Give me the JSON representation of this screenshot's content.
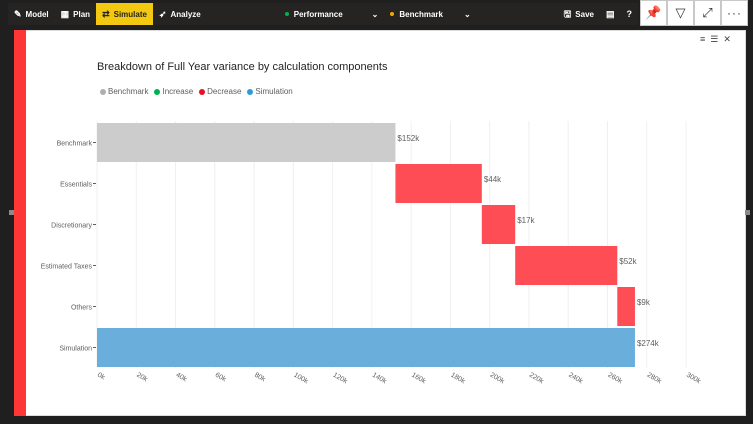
{
  "toolbar": {
    "items": [
      {
        "label": "Model",
        "icon": "✎",
        "active": false
      },
      {
        "label": "Plan",
        "icon": "▦",
        "active": false
      },
      {
        "label": "Simulate",
        "icon": "⇄",
        "active": true
      },
      {
        "label": "Analyze",
        "icon": "➶",
        "active": false
      }
    ],
    "selectors": [
      {
        "label": "Performance",
        "dot_color": "#00b050"
      },
      {
        "label": "Benchmark",
        "dot_color": "#f2a900"
      }
    ],
    "save_label": "Save"
  },
  "visual_header": {
    "icons": [
      "pin-icon",
      "filter-icon",
      "focus-mode-icon",
      "more-options-icon"
    ]
  },
  "colors": {
    "benchmark": "#cccccc",
    "increase": "#00b050",
    "decrease": "#ff4d55",
    "simulation": "#6aafdb",
    "accent_strip": "#ff3636",
    "toolbar_active": "#f2c811"
  },
  "chart_data": {
    "type": "bar",
    "subtype": "horizontal-waterfall",
    "title": "Breakdown of Full Year variance by calculation components",
    "legend": [
      {
        "name": "Benchmark",
        "color": "#b0b0b0"
      },
      {
        "name": "Increase",
        "color": "#00b050"
      },
      {
        "name": "Decrease",
        "color": "#e81123"
      },
      {
        "name": "Simulation",
        "color": "#2e9bd6"
      }
    ],
    "legend_position": "top-left",
    "xlim": [
      0,
      300
    ],
    "xticks": [
      0,
      20,
      40,
      60,
      80,
      100,
      120,
      140,
      160,
      180,
      200,
      220,
      240,
      260,
      280,
      300
    ],
    "xtick_labels": [
      "0k",
      "20k",
      "40k",
      "60k",
      "80k",
      "100k",
      "120k",
      "140k",
      "160k",
      "180k",
      "200k",
      "220k",
      "240k",
      "260k",
      "280k",
      "300k"
    ],
    "grid": true,
    "bars": [
      {
        "category": "Benchmark",
        "start": 0,
        "end": 152,
        "kind": "benchmark",
        "label": "$152k"
      },
      {
        "category": "Essentials",
        "start": 152,
        "end": 196,
        "kind": "decrease",
        "label": "$44k"
      },
      {
        "category": "Discretionary",
        "start": 196,
        "end": 213,
        "kind": "decrease",
        "label": "$17k"
      },
      {
        "category": "Estimated Taxes",
        "start": 213,
        "end": 265,
        "kind": "decrease",
        "label": "$52k"
      },
      {
        "category": "Others",
        "start": 265,
        "end": 274,
        "kind": "decrease",
        "label": "$9k"
      },
      {
        "category": "Simulation",
        "start": 0,
        "end": 274,
        "kind": "simulation",
        "label": "$274k"
      }
    ]
  }
}
